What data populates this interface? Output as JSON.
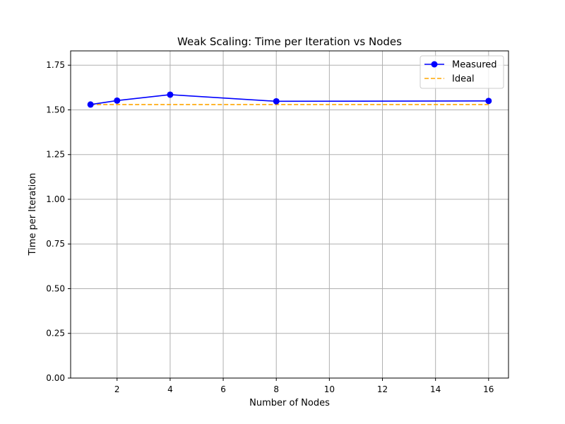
{
  "chart_data": {
    "type": "line",
    "title": "Weak Scaling: Time per Iteration vs Nodes",
    "xlabel": "Number of Nodes",
    "ylabel": "Time per Iteration",
    "xlim": [
      0.25,
      16.75
    ],
    "ylim": [
      0,
      1.83
    ],
    "xticks": [
      2,
      4,
      6,
      8,
      10,
      12,
      14,
      16
    ],
    "yticks": [
      0.0,
      0.25,
      0.5,
      0.75,
      1.0,
      1.25,
      1.5,
      1.75
    ],
    "ytick_labels": [
      "0.00",
      "0.25",
      "0.50",
      "0.75",
      "1.00",
      "1.25",
      "1.50",
      "1.75"
    ],
    "grid": true,
    "legend_position": "top-right",
    "series": [
      {
        "name": "Measured",
        "x": [
          1,
          2,
          4,
          8,
          16
        ],
        "values": [
          1.53,
          1.552,
          1.585,
          1.548,
          1.55
        ],
        "color": "#0000ff",
        "style": "solid",
        "marker": "circle"
      },
      {
        "name": "Ideal",
        "x": [
          1,
          2,
          4,
          8,
          16
        ],
        "values": [
          1.53,
          1.53,
          1.53,
          1.53,
          1.53
        ],
        "color": "#ffa500",
        "style": "dashed",
        "marker": "none"
      }
    ]
  }
}
